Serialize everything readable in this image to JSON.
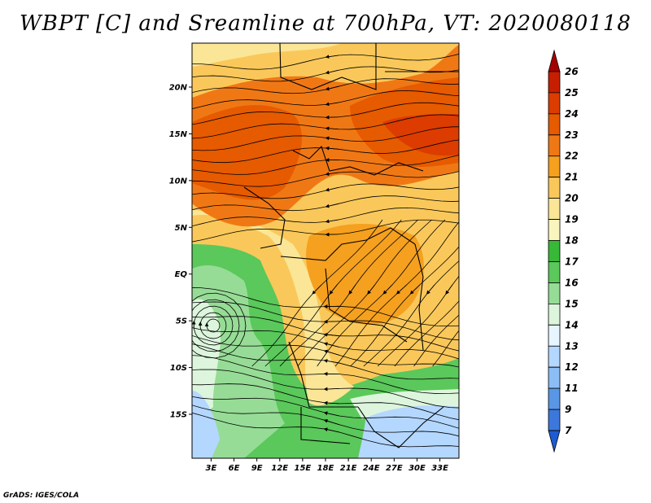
{
  "title": "WBPT [C] and Sreamline at 700hPa, VT: 2020080118",
  "credit": "GrADS: IGES/COLA",
  "map": {
    "lat_labels": [
      "20N",
      "15N",
      "10N",
      "5N",
      "EQ",
      "5S",
      "10S",
      "15S"
    ],
    "lat_values": [
      20,
      15,
      10,
      5,
      0,
      -5,
      -10,
      -15
    ],
    "lon_labels": [
      "3E",
      "6E",
      "9E",
      "12E",
      "15E",
      "18E",
      "21E",
      "24E",
      "27E",
      "30E",
      "33E"
    ],
    "lon_values": [
      3,
      6,
      9,
      12,
      15,
      18,
      21,
      24,
      27,
      30,
      33
    ],
    "lon_range": [
      0.5,
      35.5
    ],
    "lat_range": [
      -19.7,
      24.7
    ]
  },
  "colorbar": {
    "labels": [
      "26",
      "25",
      "24",
      "23",
      "22",
      "21",
      "20",
      "19",
      "18",
      "17",
      "16",
      "15",
      "14",
      "13",
      "12",
      "11",
      "9",
      "7"
    ],
    "colors": [
      "#a50000",
      "#c81e00",
      "#dc3c00",
      "#e65a00",
      "#f07814",
      "#f5a01e",
      "#fac85a",
      "#fae696",
      "#faf5be",
      "#37b937",
      "#5ac85a",
      "#96dc96",
      "#dcf5dc",
      "#e6f5ff",
      "#b4d7ff",
      "#8cbef5",
      "#5a96e6",
      "#3c78dc",
      "#1e5ad2"
    ]
  }
}
